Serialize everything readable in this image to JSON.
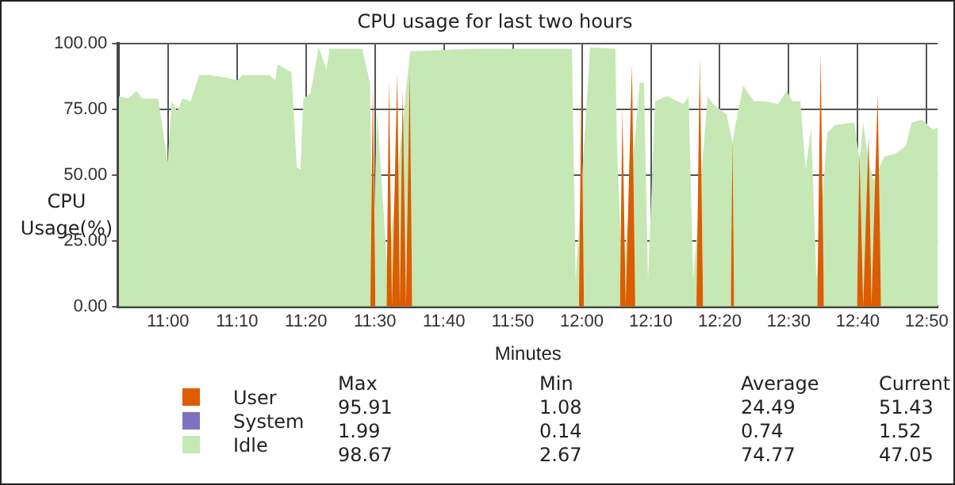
{
  "chart_data": {
    "type": "area",
    "title": "CPU usage for last two hours",
    "xlabel": "Minutes",
    "ylabel": "CPU Usage(%)",
    "xlim": [
      10.88,
      12.86
    ],
    "xticks": [
      {
        "value": 11,
        "label": "11:00"
      },
      {
        "value": 11.1667,
        "label": "11:10"
      },
      {
        "value": 11.3333,
        "label": "11:20"
      },
      {
        "value": 11.5,
        "label": "11:30"
      },
      {
        "value": 11.6667,
        "label": "11:40"
      },
      {
        "value": 11.8333,
        "label": "11:50"
      },
      {
        "value": 12,
        "label": "12:00"
      },
      {
        "value": 12.1667,
        "label": "12:10"
      },
      {
        "value": 12.3333,
        "label": "12:20"
      },
      {
        "value": 12.5,
        "label": "12:30"
      },
      {
        "value": 12.6667,
        "label": "12:40"
      },
      {
        "value": 12.8333,
        "label": "12:50"
      }
    ],
    "ylim": [
      0,
      100
    ],
    "yticks": [
      {
        "value": 0,
        "label": "0.00"
      },
      {
        "value": 25,
        "label": "25.00"
      },
      {
        "value": 50,
        "label": "50.00"
      },
      {
        "value": 75,
        "label": "75.00"
      },
      {
        "value": 100,
        "label": "100.00"
      }
    ],
    "grid": true,
    "legend": "bottom",
    "series": [
      {
        "name": "Idle",
        "color": "#c6e8b4",
        "x": [
          10.881,
          10.904,
          10.924,
          10.937,
          10.976,
          10.999,
          11.009,
          11.022,
          11.035,
          11.055,
          11.075,
          11.101,
          11.14,
          11.167,
          11.18,
          11.245,
          11.259,
          11.265,
          11.298,
          11.311,
          11.32,
          11.327,
          11.344,
          11.364,
          11.383,
          11.39,
          11.416,
          11.469,
          11.488,
          11.495,
          11.505,
          11.53,
          11.585,
          11.744,
          11.839,
          11.976,
          11.985,
          12.02,
          12.081,
          12.085,
          12.098,
          12.14,
          12.15,
          12.16,
          12.177,
          12.206,
          12.245,
          12.258,
          12.269,
          12.304,
          12.317,
          12.35,
          12.364,
          12.37,
          12.39,
          12.416,
          12.442,
          12.475,
          12.495,
          12.508,
          12.528,
          12.541,
          12.554,
          12.567,
          12.593,
          12.612,
          12.658,
          12.671,
          12.68,
          12.693,
          12.705,
          12.731,
          12.757,
          12.783,
          12.797,
          12.823,
          12.849,
          12.86
        ],
        "values": [
          80,
          79,
          82,
          79,
          79,
          55,
          78,
          74,
          79,
          78,
          88,
          88,
          87,
          86,
          88,
          88,
          86,
          92,
          89,
          53,
          52,
          79,
          81,
          98.5,
          90,
          98,
          98,
          98,
          85,
          15,
          75,
          14,
          97,
          98,
          98,
          98,
          10,
          98.5,
          98,
          60,
          10,
          85,
          85,
          10,
          78,
          80,
          77,
          80,
          10,
          80,
          77,
          73,
          62,
          68,
          84,
          78,
          78,
          77,
          82,
          78,
          78,
          52,
          68,
          10,
          66,
          69,
          70,
          56,
          70,
          55,
          48,
          57,
          58,
          61,
          70,
          71,
          67,
          68
        ]
      },
      {
        "name": "System",
        "color": "#8070c0"
      },
      {
        "name": "User",
        "color": "#dd5c00",
        "x": [
          11.489,
          11.495,
          11.501,
          null,
          11.528,
          11.534,
          11.541,
          11.554,
          11.56,
          11.567,
          11.575,
          11.584,
          11.59,
          null,
          11.993,
          11.999,
          12.005,
          null,
          12.092,
          12.098,
          12.106,
          12.121,
          12.129,
          null,
          12.277,
          12.285,
          12.293,
          null,
          12.36,
          12.364,
          12.368,
          null,
          12.569,
          12.577,
          12.585,
          null,
          12.665,
          12.671,
          12.68,
          12.693,
          12.7,
          12.715,
          12.723
        ],
        "values": [
          0,
          84,
          0,
          null,
          0,
          86,
          0,
          89,
          0,
          82,
          0,
          89,
          0,
          null,
          0,
          86,
          0,
          null,
          0,
          75,
          0,
          92,
          0,
          null,
          0,
          94,
          0,
          null,
          0,
          63,
          0,
          null,
          0,
          96,
          0,
          null,
          0,
          58,
          0,
          65,
          0,
          81,
          0
        ]
      }
    ],
    "annotations": [
      "Max",
      "Min",
      "Average",
      "Current",
      "95.91",
      "1.08",
      "24.49",
      "51.43",
      "1.99",
      "0.14",
      "0.74",
      "1.52",
      "98.67",
      "2.67",
      "74.77",
      "47.05"
    ]
  }
}
